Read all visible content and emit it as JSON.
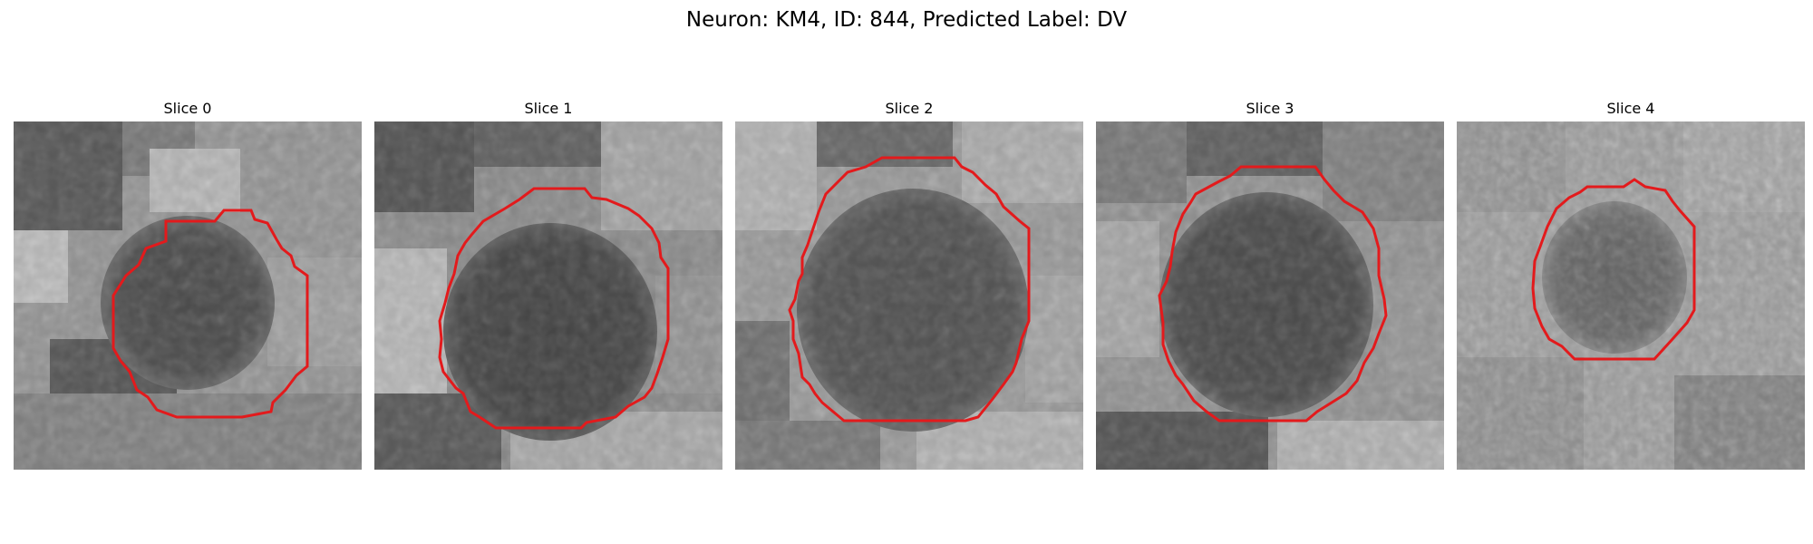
{
  "figure": {
    "title": "Neuron: KM4, ID: 844, Predicted Label: DV"
  },
  "panels": [
    {
      "title": "Slice 0",
      "image": "grayscale EM image patch with a dark rounded cell body, outlined by a red contour",
      "contour_color": "#e31a1c"
    },
    {
      "title": "Slice 1",
      "image": "grayscale EM image patch with a large dark rounded cell body, outlined by a red contour",
      "contour_color": "#e31a1c"
    },
    {
      "title": "Slice 2",
      "image": "grayscale EM image patch with a large dark rounded cell body, outlined by a red contour",
      "contour_color": "#e31a1c"
    },
    {
      "title": "Slice 3",
      "image": "grayscale EM image patch with a dark rounded cell body, outlined by a red contour",
      "contour_color": "#e31a1c"
    },
    {
      "title": "Slice 4",
      "image": "grayscale EM image patch with a smaller dark rounded cell body, outlined by a red contour",
      "contour_color": "#e31a1c"
    }
  ]
}
